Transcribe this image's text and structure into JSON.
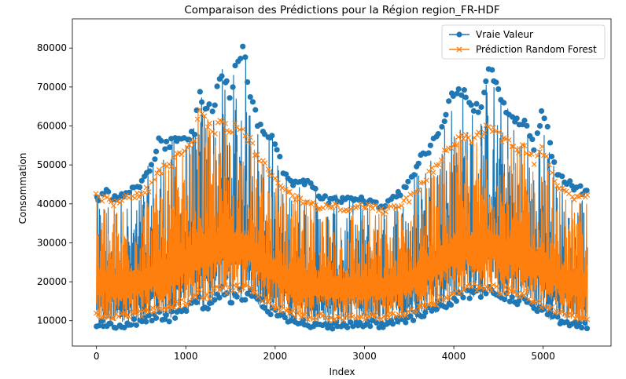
{
  "chart_data": {
    "type": "line",
    "title": "Comparaison des Prédictions pour la Région region_FR-HDF",
    "xlabel": "Index",
    "ylabel": "Consommation",
    "xlim": [
      -270,
      5760
    ],
    "ylim": [
      3500,
      87500
    ],
    "x_ticks": [
      0,
      1000,
      2000,
      3000,
      4000,
      5000
    ],
    "y_ticks": [
      10000,
      20000,
      30000,
      40000,
      50000,
      60000,
      70000,
      80000
    ],
    "grid": false,
    "legend_position": "top-right",
    "series": [
      {
        "name": "Vraie Valeur",
        "color": "#1f77b4",
        "marker": "circle",
        "envelope_x": [
          0,
          100,
          200,
          300,
          400,
          500,
          600,
          700,
          800,
          900,
          1000,
          1100,
          1150,
          1200,
          1300,
          1400,
          1500,
          1550,
          1600,
          1650,
          1700,
          1800,
          1900,
          2000,
          2100,
          2200,
          2300,
          2400,
          2500,
          2600,
          2700,
          2800,
          2900,
          3000,
          3100,
          3200,
          3300,
          3400,
          3500,
          3600,
          3700,
          3800,
          3900,
          4000,
          4100,
          4200,
          4300,
          4400,
          4500,
          4600,
          4700,
          4800,
          4900,
          5000,
          5100,
          5200,
          5300,
          5400,
          5500
        ],
        "max": [
          42000,
          44000,
          42500,
          43000,
          45500,
          46000,
          51000,
          57000,
          56000,
          58000,
          58000,
          60000,
          72500,
          68000,
          65000,
          75500,
          70000,
          76000,
          80000,
          83500,
          72000,
          62000,
          60000,
          58000,
          48000,
          47000,
          47000,
          46000,
          43000,
          42000,
          42500,
          42000,
          41500,
          42000,
          41000,
          40000,
          43000,
          44000,
          46000,
          52000,
          55000,
          57500,
          65000,
          71000,
          70000,
          67000,
          66000,
          77000,
          70000,
          66000,
          62000,
          62000,
          55000,
          67000,
          52000,
          48000,
          46000,
          45000,
          44000
        ],
        "min": [
          8000,
          8500,
          7500,
          8000,
          8500,
          9000,
          9500,
          10500,
          9500,
          11000,
          12000,
          13000,
          14000,
          11000,
          14000,
          16000,
          14000,
          15000,
          16000,
          15000,
          16000,
          14000,
          12000,
          11000,
          10000,
          9000,
          8500,
          8000,
          8500,
          7500,
          8000,
          8000,
          8500,
          8000,
          8500,
          8000,
          9000,
          9000,
          9500,
          10500,
          11500,
          12000,
          13000,
          14000,
          15000,
          16000,
          16000,
          16000,
          15000,
          14500,
          14000,
          14000,
          12000,
          11000,
          10000,
          9000,
          8500,
          8000,
          7500
        ]
      },
      {
        "name": "Prédiction Random Forest",
        "color": "#ff7f0e",
        "marker": "x",
        "envelope_x": [
          0,
          100,
          200,
          300,
          400,
          500,
          600,
          700,
          800,
          900,
          1000,
          1100,
          1150,
          1200,
          1300,
          1400,
          1500,
          1550,
          1600,
          1650,
          1700,
          1800,
          1900,
          2000,
          2100,
          2200,
          2300,
          2400,
          2500,
          2600,
          2700,
          2800,
          2900,
          3000,
          3100,
          3200,
          3300,
          3400,
          3500,
          3600,
          3700,
          3800,
          3900,
          4000,
          4100,
          4200,
          4300,
          4400,
          4500,
          4600,
          4700,
          4800,
          4900,
          5000,
          5100,
          5200,
          5300,
          5400,
          5500
        ],
        "max": [
          43000,
          42000,
          41000,
          42000,
          43000,
          43500,
          45000,
          49000,
          51000,
          53000,
          55000,
          58000,
          67000,
          63000,
          60000,
          62000,
          60000,
          61000,
          60000,
          59000,
          58000,
          53000,
          51000,
          48000,
          44000,
          43000,
          42000,
          41500,
          40000,
          40000,
          40000,
          40000,
          40000,
          40000,
          40000,
          39000,
          40000,
          41000,
          42000,
          45000,
          48000,
          51000,
          55000,
          57000,
          58000,
          58000,
          59000,
          61000,
          59000,
          57000,
          55000,
          56000,
          52000,
          56000,
          48000,
          45000,
          43000,
          42000,
          43000
        ],
        "min": [
          10500,
          11000,
          10000,
          10500,
          11000,
          11000,
          11500,
          12500,
          12000,
          13000,
          14000,
          15000,
          16000,
          14000,
          16000,
          17500,
          16500,
          17000,
          17500,
          17000,
          17500,
          16000,
          14000,
          13000,
          12000,
          11000,
          10500,
          10000,
          10500,
          10000,
          10000,
          10000,
          10500,
          10000,
          10500,
          10000,
          11000,
          11000,
          11500,
          12500,
          13500,
          14000,
          15000,
          16000,
          17000,
          17500,
          17500,
          17500,
          17000,
          16500,
          16000,
          16000,
          14000,
          13000,
          12000,
          11000,
          10500,
          10000,
          10000
        ]
      }
    ]
  }
}
